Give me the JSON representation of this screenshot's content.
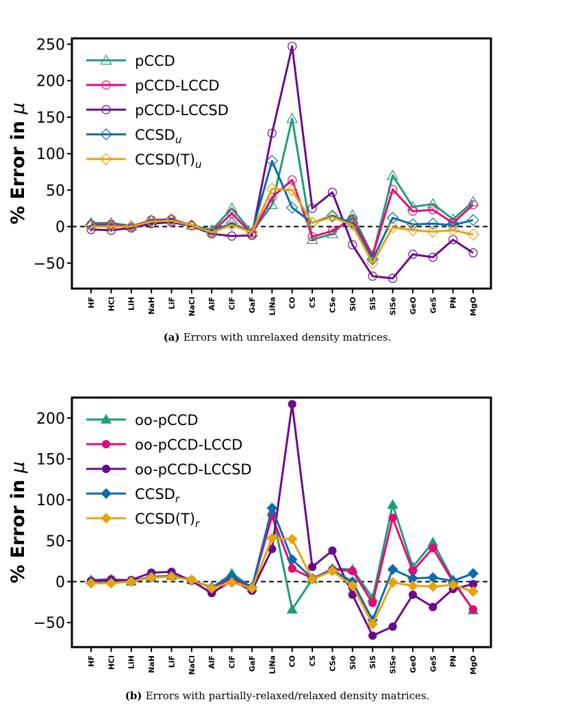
{
  "chart_data": [
    {
      "id": "a",
      "type": "line",
      "caption_label": "(a)",
      "caption_text": "Errors with unrelaxed density matrices.",
      "ylabel": "% Error in",
      "ylabel_symbol": "μ",
      "ylim": [
        -85,
        258
      ],
      "yticks": [
        250,
        200,
        150,
        100,
        50,
        0,
        -50
      ],
      "ytick_labels": [
        "250",
        "200",
        "150",
        "100",
        "50",
        "0",
        "−50"
      ],
      "zero_line": true,
      "categories": [
        "HF",
        "HCl",
        "LiH",
        "NaH",
        "LiF",
        "NaCl",
        "AlF",
        "ClF",
        "GaF",
        "LiNa",
        "CO",
        "CS",
        "CSe",
        "SiO",
        "SiS",
        "SiSe",
        "GeO",
        "GeS",
        "PN",
        "MgO"
      ],
      "series": [
        {
          "name": "pCCD",
          "sub": "",
          "color": "#1b9e77",
          "marker": "triangle",
          "filled": false,
          "values": [
            5,
            5,
            1,
            8,
            10,
            2,
            -5,
            25,
            -8,
            30,
            148,
            -18,
            -10,
            16,
            -40,
            70,
            27,
            31,
            10,
            34
          ]
        },
        {
          "name": "pCCD-LCCD",
          "sub": "",
          "color": "#e7087a",
          "marker": "circle",
          "filled": false,
          "values": [
            3,
            3,
            0,
            9,
            10,
            2,
            -8,
            18,
            -10,
            40,
            64,
            -14,
            -6,
            10,
            -40,
            51,
            21,
            23,
            5,
            30
          ]
        },
        {
          "name": "pCCD-LCCSD",
          "sub": "",
          "color": "#6a0a8c",
          "marker": "circle",
          "filled": false,
          "values": [
            -4,
            -5,
            -2,
            4,
            6,
            1,
            -10,
            -13,
            -12,
            128,
            247,
            25,
            47,
            -25,
            -68,
            -71,
            -38,
            -42,
            -18,
            -36
          ]
        },
        {
          "name": "CCSD",
          "sub": "u",
          "color": "#0a6cad",
          "marker": "diamond",
          "filled": false,
          "values": [
            2,
            1,
            0,
            8,
            9,
            2,
            -7,
            5,
            -8,
            90,
            26,
            5,
            15,
            5,
            -45,
            12,
            3,
            4,
            2,
            9
          ]
        },
        {
          "name": "CCSD(T)",
          "sub": "u",
          "color": "#e8a20c",
          "marker": "diamond",
          "filled": false,
          "values": [
            0,
            0,
            0,
            7,
            8,
            2,
            -8,
            2,
            -8,
            52,
            50,
            5,
            13,
            2,
            -50,
            -1,
            -5,
            -7,
            -5,
            -11
          ]
        }
      ]
    },
    {
      "id": "b",
      "type": "line",
      "caption_label": "(b)",
      "caption_text": "Errors with partially-relaxed/relaxed density matrices.",
      "ylabel": "% Error in",
      "ylabel_symbol": "μ",
      "ylim": [
        -80,
        225
      ],
      "yticks": [
        200,
        150,
        100,
        50,
        0,
        -50
      ],
      "ytick_labels": [
        "200",
        "150",
        "100",
        "50",
        "0",
        "−50"
      ],
      "zero_line": true,
      "categories": [
        "HF",
        "HCl",
        "LiH",
        "NaH",
        "LiF",
        "NaCl",
        "AlF",
        "ClF",
        "GaF",
        "LiNa",
        "CO",
        "CS",
        "CSe",
        "SiO",
        "SiS",
        "SiSe",
        "GeO",
        "GeS",
        "PN",
        "MgO"
      ],
      "series": [
        {
          "name": "oo-pCCD",
          "sub": "",
          "color": "#1b9e77",
          "marker": "triangle",
          "filled": true,
          "values": [
            2,
            3,
            0,
            5,
            7,
            2,
            -8,
            10,
            -7,
            86,
            -34,
            3,
            16,
            15,
            -20,
            94,
            18,
            48,
            2,
            -35
          ]
        },
        {
          "name": "oo-pCCD-LCCD",
          "sub": "",
          "color": "#e7087a",
          "marker": "circle",
          "filled": true,
          "values": [
            1,
            3,
            1,
            5,
            7,
            2,
            -8,
            4,
            -7,
            80,
            16,
            4,
            15,
            13,
            -26,
            78,
            13,
            41,
            0,
            -34
          ]
        },
        {
          "name": "oo-pCCD-LCCSD",
          "sub": "",
          "color": "#6a0a8c",
          "marker": "circle",
          "filled": true,
          "values": [
            1,
            2,
            2,
            11,
            12,
            1,
            -14,
            1,
            -11,
            40,
            217,
            18,
            38,
            -16,
            -66,
            -55,
            -16,
            -31,
            -9,
            -3
          ]
        },
        {
          "name": "CCSD",
          "sub": "r",
          "color": "#0a6cad",
          "marker": "diamond",
          "filled": true,
          "values": [
            -1,
            -1,
            0,
            6,
            7,
            2,
            -7,
            7,
            -7,
            90,
            27,
            4,
            14,
            0,
            -47,
            15,
            4,
            5,
            1,
            10
          ]
        },
        {
          "name": "CCSD(T)",
          "sub": "r",
          "color": "#e8a20c",
          "marker": "diamond",
          "filled": true,
          "values": [
            -2,
            -2,
            0,
            5,
            6,
            2,
            -8,
            -1,
            -8,
            53,
            52,
            3,
            13,
            -5,
            -52,
            -1,
            -5,
            -6,
            -4,
            -12
          ]
        }
      ]
    }
  ]
}
